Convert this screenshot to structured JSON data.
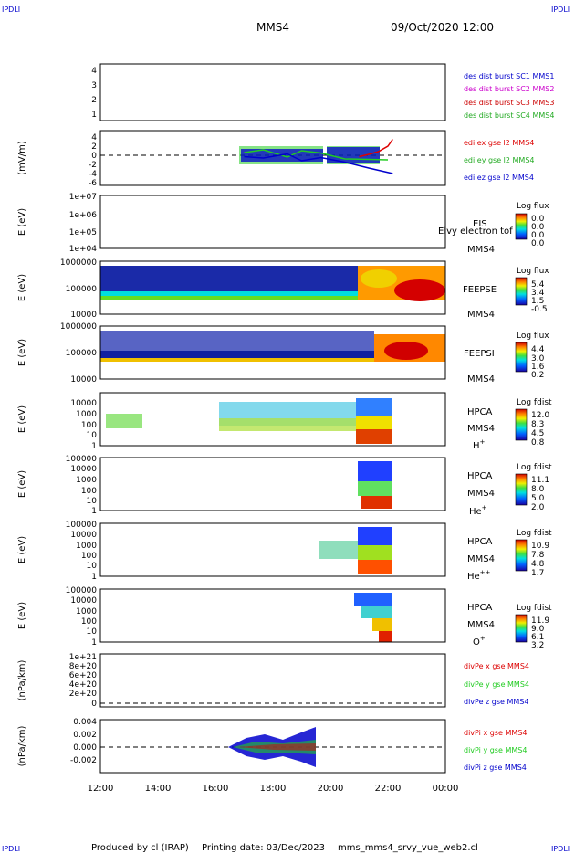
{
  "corner_labels": {
    "top_left": "IPDLI",
    "top_right": "IPDLI",
    "bottom_left": "IPDLI",
    "bottom_right": "IPDLI"
  },
  "header": {
    "mission": "MMS4",
    "datetime": "09/Oct/2020 12:00"
  },
  "footer": {
    "produced_by": "Produced by cl (IRAP)",
    "printing_date": "Printing date: 03/Dec/2023",
    "script": "mms_mms4_srvy_vue_web2.cl"
  },
  "colors": {
    "mms1": "#0000cc",
    "mms2": "#cc00cc",
    "mms3": "#cc0000",
    "mms4": "#22aa22",
    "x": "#dd0000",
    "y": "#22cc22",
    "z": "#0000cc"
  },
  "time_axis": {
    "ticks": [
      "12:00",
      "14:00",
      "16:00",
      "18:00",
      "20:00",
      "22:00",
      "00:00"
    ]
  },
  "chart_data": [
    {
      "type": "line",
      "panel": "des-dist",
      "ylabel": "",
      "yticks": [
        "1",
        "2",
        "3",
        "4"
      ],
      "ylim": [
        0.5,
        4.5
      ],
      "legend": [
        "des dist burst SC1 MMS1",
        "des dist burst SC2 MMS2",
        "des dist burst SC3 MMS3",
        "des dist burst SC4 MMS4"
      ],
      "series": []
    },
    {
      "type": "line",
      "panel": "edi",
      "ylabel": "(mV/m)",
      "yticks": [
        "4",
        "2",
        "0",
        "-2",
        "-4",
        "-6"
      ],
      "ylim": [
        -6,
        5
      ],
      "legend": [
        "edi ex gse l2 MMS4",
        "edi ey gse l2 MMS4",
        "edi ez gse l2 MMS4"
      ],
      "series": [
        {
          "name": "edi ex gse l2 MMS4",
          "x": [
            "21:00",
            "21:20",
            "21:40",
            "22:00",
            "22:10"
          ],
          "y": [
            -0.3,
            0.2,
            0.8,
            2.0,
            3.5
          ]
        },
        {
          "name": "edi ey gse l2 MMS4",
          "x": [
            "17:00",
            "17:40",
            "18:30",
            "19:00",
            "19:40",
            "20:30",
            "21:20",
            "22:00"
          ],
          "y": [
            0.6,
            1.2,
            -0.4,
            1.0,
            0.5,
            -0.8,
            -0.9,
            -1.0
          ]
        },
        {
          "name": "edi ez gse l2 MMS4",
          "x": [
            "17:00",
            "17:40",
            "18:30",
            "19:00",
            "19:40",
            "20:30",
            "21:20",
            "22:10"
          ],
          "y": [
            -0.3,
            -0.6,
            0.3,
            -1.2,
            -0.5,
            -1.5,
            -2.8,
            -4.0
          ]
        }
      ]
    },
    {
      "type": "heatmap",
      "panel": "eis",
      "ylabel": "E (eV)",
      "yticks": [
        "1e+07",
        "1e+06",
        "1e+05",
        "1e+04"
      ],
      "label": "EIS",
      "sc": "MMS4",
      "overlay": "Elvy electron tof",
      "cbar_title": "Log flux",
      "cbar_ticks": [
        "0.0",
        "0.0",
        "0.0",
        "0.0"
      ]
    },
    {
      "type": "heatmap",
      "panel": "feepse",
      "ylabel": "E (eV)",
      "yticks": [
        "1000000",
        "100000",
        "10000"
      ],
      "label": "FEEPSE",
      "sc": "MMS4",
      "cbar_title": "Log flux",
      "cbar_ticks": [
        "5.4",
        "3.4",
        "1.5",
        "-0.5"
      ]
    },
    {
      "type": "heatmap",
      "panel": "feepsi",
      "ylabel": "E (eV)",
      "yticks": [
        "1000000",
        "100000",
        "10000"
      ],
      "label": "FEEPSI",
      "sc": "MMS4",
      "cbar_title": "Log flux",
      "cbar_ticks": [
        "4.4",
        "3.0",
        "1.6",
        "0.2"
      ]
    },
    {
      "type": "heatmap",
      "panel": "hpca-h",
      "ylabel": "E (eV)",
      "yticks": [
        "10000",
        "1000",
        "100",
        "10",
        "1"
      ],
      "label": "HPCA",
      "sc": "MMS4",
      "ion": "H",
      "charge": "+",
      "cbar_title": "Log fdist",
      "cbar_ticks": [
        "12.0",
        "8.3",
        "4.5",
        "0.8"
      ]
    },
    {
      "type": "heatmap",
      "panel": "hpca-he1",
      "ylabel": "E (eV)",
      "yticks": [
        "100000",
        "10000",
        "1000",
        "100",
        "10",
        "1"
      ],
      "label": "HPCA",
      "sc": "MMS4",
      "ion": "He",
      "charge": "+",
      "cbar_title": "Log fdist",
      "cbar_ticks": [
        "11.1",
        "8.0",
        "5.0",
        "2.0"
      ]
    },
    {
      "type": "heatmap",
      "panel": "hpca-he2",
      "ylabel": "E (eV)",
      "yticks": [
        "100000",
        "10000",
        "1000",
        "100",
        "10",
        "1"
      ],
      "label": "HPCA",
      "sc": "MMS4",
      "ion": "He",
      "charge": "++",
      "cbar_title": "Log fdist",
      "cbar_ticks": [
        "10.9",
        "7.8",
        "4.8",
        "1.7"
      ]
    },
    {
      "type": "heatmap",
      "panel": "hpca-o",
      "ylabel": "E (eV)",
      "yticks": [
        "100000",
        "10000",
        "1000",
        "100",
        "10",
        "1"
      ],
      "label": "HPCA",
      "sc": "MMS4",
      "ion": "O",
      "charge": "+",
      "cbar_title": "Log fdist",
      "cbar_ticks": [
        "11.9",
        "9.0",
        "6.1",
        "3.2"
      ]
    },
    {
      "type": "line",
      "panel": "divpe",
      "ylabel": "(nPa/km)",
      "yticks": [
        "1e+21",
        "8e+20",
        "6e+20",
        "4e+20",
        "2e+20",
        "0"
      ],
      "ylim": [
        0,
        1.1e+21
      ],
      "legend": [
        "divPe x gse MMS4",
        "divPe y gse MMS4",
        "divPe z gse MMS4"
      ],
      "series": []
    },
    {
      "type": "line",
      "panel": "divpi",
      "ylabel": "(nPa/km)",
      "yticks": [
        "0.004",
        "0.002",
        "0.000",
        "-0.002"
      ],
      "ylim": [
        -0.004,
        0.004
      ],
      "legend": [
        "divPi x gse MMS4",
        "divPi y gse MMS4",
        "divPi z gse MMS4"
      ],
      "series": [
        {
          "name": "divPi x gse MMS4",
          "x": [
            "16:30",
            "19:30"
          ],
          "y": [
            0.0,
            0.0
          ]
        },
        {
          "name": "divPi y gse MMS4",
          "x": [
            "16:30",
            "19:30"
          ],
          "y": [
            0.0,
            0.0
          ]
        },
        {
          "name": "divPi z gse MMS4",
          "x": [
            "16:30",
            "19:30"
          ],
          "y": [
            0.0,
            0.0
          ]
        }
      ]
    }
  ]
}
